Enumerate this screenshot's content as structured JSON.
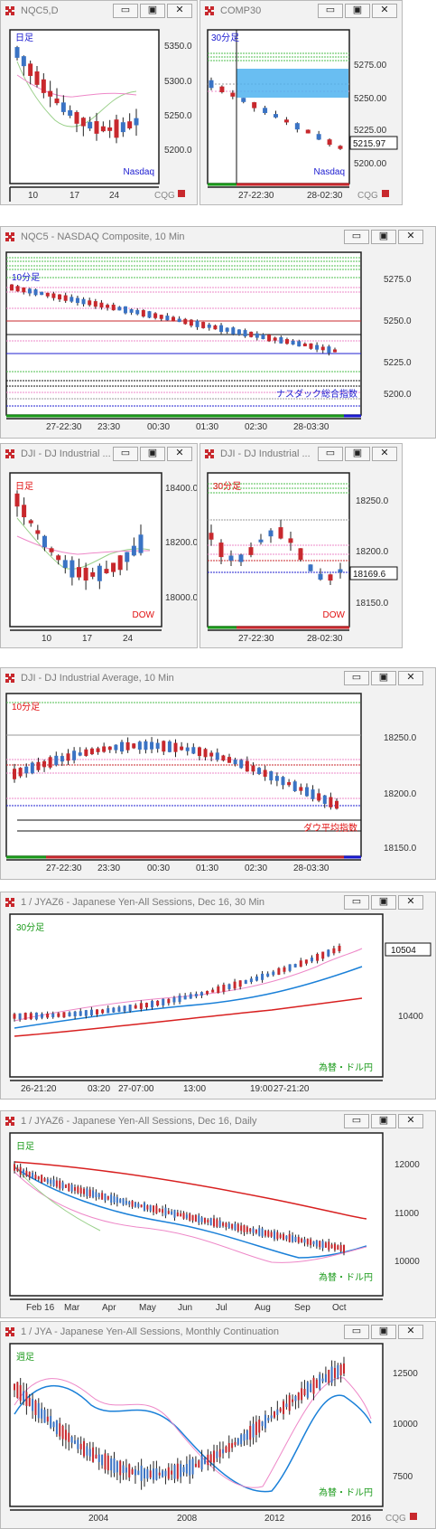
{
  "colors": {
    "up": "#3a73c4",
    "down": "#c8282d",
    "frame": "#1f1f1f",
    "blue_label": "#1a1ad0",
    "red_label": "#e01010",
    "green_label": "#1a9a1a"
  },
  "window_buttons": {
    "minimize": "▭",
    "maximize": "▣",
    "close": "✕"
  },
  "windows": [
    {
      "title": "NQC5,D"
    },
    {
      "title": "COMP30"
    },
    {
      "title": "NQC5 - NASDAQ Composite, 10 Min"
    },
    {
      "title": "DJI - DJ Industrial ..."
    },
    {
      "title": "DJI - DJ Industrial ..."
    },
    {
      "title": "DJI - DJ Industrial Average, 10 Min"
    },
    {
      "title": "1 / JYAZ6 - Japanese Yen-All Sessions, Dec 16, 30 Min"
    },
    {
      "title": "1 / JYAZ6 - Japanese Yen-All Sessions, Dec 16, Daily"
    },
    {
      "title": "1 / JYA - Japanese Yen-All Sessions, Monthly Continuation"
    }
  ],
  "chart_data": [
    {
      "type": "candlestick",
      "period_label": "日足",
      "instrument_label": "Nasdaq",
      "y_ticks": [
        "5350.0",
        "5300.0",
        "5250.0",
        "5200.0"
      ],
      "x_ticks": [
        "10",
        "17",
        "24"
      ],
      "watermark": "CQG"
    },
    {
      "type": "candlestick",
      "period_label": "30分足",
      "instrument_label": "Nasdaq",
      "y_ticks": [
        "5275.00",
        "5250.00",
        "5225.00",
        "5200.00"
      ],
      "x_ticks": [
        "27-22:30",
        "28-02:30"
      ],
      "last_price": "5215.97",
      "watermark": "CQG"
    },
    {
      "type": "candlestick",
      "period_label": "10分足",
      "instrument_label": "ナスダック総合指数",
      "y_ticks": [
        "5275.0",
        "5250.0",
        "5225.0",
        "5200.0"
      ],
      "x_ticks": [
        "27-22:30",
        "23:30",
        "00:30",
        "01:30",
        "02:30",
        "28-03:30"
      ]
    },
    {
      "type": "candlestick",
      "period_label": "日足",
      "instrument_label": "DOW",
      "y_ticks": [
        "18400.0",
        "18200.0",
        "18000.0"
      ],
      "x_ticks": [
        "10",
        "17",
        "24"
      ]
    },
    {
      "type": "candlestick",
      "period_label": "30分足",
      "instrument_label": "DOW",
      "y_ticks": [
        "18250.0",
        "18200.0",
        "18150.0"
      ],
      "x_ticks": [
        "27-22:30",
        "28-02:30"
      ],
      "last_price": "18169.6"
    },
    {
      "type": "candlestick",
      "period_label": "10分足",
      "instrument_label": "ダウ平均指数",
      "y_ticks": [
        "18250.0",
        "18200.0",
        "18150.0"
      ],
      "x_ticks": [
        "27-22:30",
        "23:30",
        "00:30",
        "01:30",
        "02:30",
        "28-03:30"
      ]
    },
    {
      "type": "candlestick",
      "period_label": "30分足",
      "instrument_label": "為替・ドル円",
      "y_ticks": [
        "10400"
      ],
      "x_ticks": [
        "26-21:20",
        "03:20",
        "27-07:00",
        "13:00",
        "19:00",
        "27-21:20"
      ],
      "last_price": "10504"
    },
    {
      "type": "candlestick",
      "period_label": "日足",
      "instrument_label": "為替・ドル円",
      "y_ticks": [
        "12000",
        "11000",
        "10000"
      ],
      "x_ticks": [
        "Feb 16",
        "Mar",
        "Apr",
        "May",
        "Jun",
        "Jul",
        "Aug",
        "Sep",
        "Oct"
      ]
    },
    {
      "type": "candlestick",
      "period_label": "週足",
      "instrument_label": "為替・ドル円",
      "y_ticks": [
        "12500",
        "10000",
        "7500"
      ],
      "x_ticks": [
        "2004",
        "2008",
        "2012",
        "2016"
      ],
      "watermark": "CQG"
    }
  ]
}
